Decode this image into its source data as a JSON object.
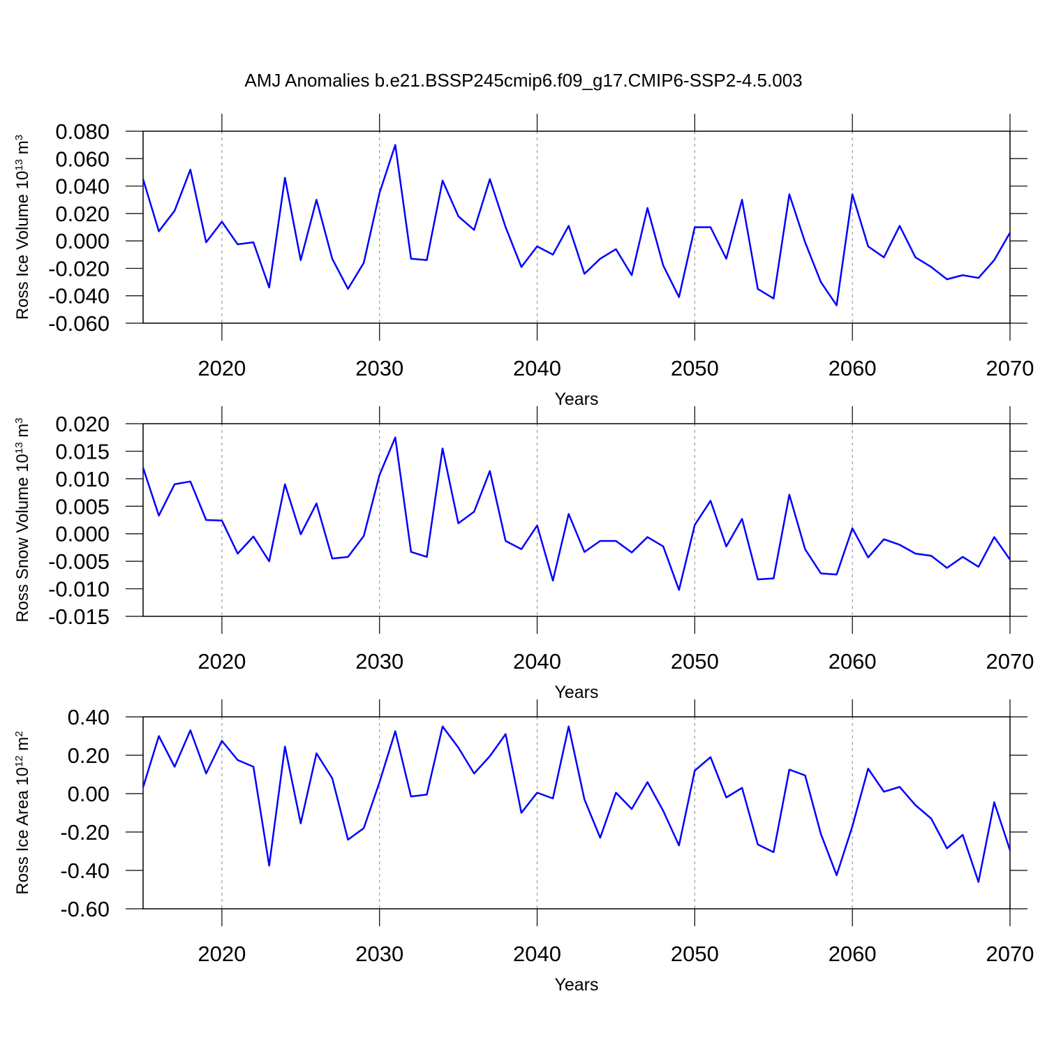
{
  "chart_data": [
    {
      "type": "line",
      "title": "AMJ Anomalies b.e21.BSSP245cmip6.f09_g17.CMIP6-SSP2-4.5.003",
      "ylabel": [
        "Ross Ice Volume 10",
        "13",
        " m",
        "3"
      ],
      "xlabel": "Years",
      "color": "#0000ff",
      "grid": "x",
      "xlim": [
        2015,
        2070
      ],
      "xticks": [
        2020,
        2030,
        2040,
        2050,
        2060,
        2070
      ],
      "ylim": [
        -0.06,
        0.08
      ],
      "yticks": [
        {
          "value": -0.06,
          "label": "-0.060"
        },
        {
          "value": -0.04,
          "label": "-0.040"
        },
        {
          "value": -0.02,
          "label": "-0.020"
        },
        {
          "value": 0,
          "label": "0.000"
        },
        {
          "value": 0.02,
          "label": "0.020"
        },
        {
          "value": 0.04,
          "label": "0.040"
        },
        {
          "value": 0.06,
          "label": "0.060"
        },
        {
          "value": 0.08,
          "label": "0.080"
        }
      ],
      "x": [
        2015,
        2016,
        2017,
        2018,
        2019,
        2020,
        2021,
        2022,
        2023,
        2024,
        2025,
        2026,
        2027,
        2028,
        2029,
        2030,
        2031,
        2032,
        2033,
        2034,
        2035,
        2036,
        2037,
        2038,
        2039,
        2040,
        2041,
        2042,
        2043,
        2044,
        2045,
        2046,
        2047,
        2048,
        2049,
        2050,
        2051,
        2052,
        2053,
        2054,
        2055,
        2056,
        2057,
        2058,
        2059,
        2060,
        2061,
        2062,
        2063,
        2064,
        2065,
        2066,
        2067,
        2068,
        2069,
        2070
      ],
      "values": [
        0.045,
        0.007,
        0.022,
        0.052,
        -0.001,
        0.014,
        -0.0025,
        -0.001,
        -0.034,
        0.046,
        -0.014,
        0.03,
        -0.013,
        -0.035,
        -0.016,
        0.035,
        0.07,
        -0.013,
        -0.014,
        0.044,
        0.018,
        0.008,
        0.045,
        0.01,
        -0.019,
        -0.004,
        -0.01,
        0.011,
        -0.024,
        -0.013,
        -0.006,
        -0.025,
        0.024,
        -0.018,
        -0.041,
        0.01,
        0.01,
        -0.013,
        0.03,
        -0.035,
        -0.042,
        0.034,
        -0.001,
        -0.03,
        -0.047,
        0.034,
        -0.004,
        -0.012,
        0.011,
        -0.012,
        -0.019,
        -0.028,
        -0.025,
        -0.027,
        -0.014,
        0.006
      ]
    },
    {
      "type": "line",
      "ylabel": [
        "Ross Snow Volume 10",
        "13",
        " m",
        "3"
      ],
      "xlabel": "Years",
      "color": "#0000ff",
      "grid": "x",
      "xlim": [
        2015,
        2070
      ],
      "xticks": [
        2020,
        2030,
        2040,
        2050,
        2060,
        2070
      ],
      "ylim": [
        -0.015,
        0.02
      ],
      "yticks": [
        {
          "value": -0.015,
          "label": "-0.015"
        },
        {
          "value": -0.01,
          "label": "-0.010"
        },
        {
          "value": -0.005,
          "label": "-0.005"
        },
        {
          "value": 0,
          "label": "0.000"
        },
        {
          "value": 0.005,
          "label": "0.005"
        },
        {
          "value": 0.01,
          "label": "0.010"
        },
        {
          "value": 0.015,
          "label": "0.015"
        },
        {
          "value": 0.02,
          "label": "0.020"
        }
      ],
      "x": [
        2015,
        2016,
        2017,
        2018,
        2019,
        2020,
        2021,
        2022,
        2023,
        2024,
        2025,
        2026,
        2027,
        2028,
        2029,
        2030,
        2031,
        2032,
        2033,
        2034,
        2035,
        2036,
        2037,
        2038,
        2039,
        2040,
        2041,
        2042,
        2043,
        2044,
        2045,
        2046,
        2047,
        2048,
        2049,
        2050,
        2051,
        2052,
        2053,
        2054,
        2055,
        2056,
        2057,
        2058,
        2059,
        2060,
        2061,
        2062,
        2063,
        2064,
        2065,
        2066,
        2067,
        2068,
        2069,
        2070
      ],
      "values": [
        0.012,
        0.0033,
        0.009,
        0.0095,
        0.0025,
        0.0024,
        -0.0036,
        -0.0005,
        -0.005,
        0.009,
        -0.0001,
        0.0055,
        -0.0045,
        -0.0042,
        -0.0004,
        0.0107,
        0.0175,
        -0.0033,
        -0.0042,
        0.0155,
        0.0019,
        0.004,
        0.0114,
        -0.0013,
        -0.0028,
        0.0015,
        -0.0085,
        0.0036,
        -0.0033,
        -0.0013,
        -0.0013,
        -0.0034,
        -0.0006,
        -0.0023,
        -0.0102,
        0.0016,
        0.006,
        -0.0023,
        0.0027,
        -0.0083,
        -0.0081,
        0.0071,
        -0.0028,
        -0.0072,
        -0.0074,
        0.001,
        -0.0043,
        -0.001,
        -0.002,
        -0.0036,
        -0.004,
        -0.0062,
        -0.0042,
        -0.006,
        -0.0006,
        -0.0047
      ]
    },
    {
      "type": "line",
      "ylabel": [
        "Ross Ice Area 10",
        "12",
        " m",
        "2"
      ],
      "xlabel": "Years",
      "color": "#0000ff",
      "grid": "x",
      "xlim": [
        2015,
        2070
      ],
      "xticks": [
        2020,
        2030,
        2040,
        2050,
        2060,
        2070
      ],
      "ylim": [
        -0.6,
        0.4
      ],
      "yticks": [
        {
          "value": -0.6,
          "label": "-0.60"
        },
        {
          "value": -0.4,
          "label": "-0.40"
        },
        {
          "value": -0.2,
          "label": "-0.20"
        },
        {
          "value": 0,
          "label": "0.00"
        },
        {
          "value": 0.2,
          "label": "0.20"
        },
        {
          "value": 0.4,
          "label": "0.40"
        }
      ],
      "x": [
        2015,
        2016,
        2017,
        2018,
        2019,
        2020,
        2021,
        2022,
        2023,
        2024,
        2025,
        2026,
        2027,
        2028,
        2029,
        2030,
        2031,
        2032,
        2033,
        2034,
        2035,
        2036,
        2037,
        2038,
        2039,
        2040,
        2041,
        2042,
        2043,
        2044,
        2045,
        2046,
        2047,
        2048,
        2049,
        2050,
        2051,
        2052,
        2053,
        2054,
        2055,
        2056,
        2057,
        2058,
        2059,
        2060,
        2061,
        2062,
        2063,
        2064,
        2065,
        2066,
        2067,
        2068,
        2069,
        2070
      ],
      "values": [
        0.033,
        0.3,
        0.14,
        0.33,
        0.105,
        0.275,
        0.175,
        0.14,
        -0.375,
        0.245,
        -0.155,
        0.21,
        0.08,
        -0.24,
        -0.18,
        0.06,
        0.325,
        -0.015,
        -0.005,
        0.35,
        0.24,
        0.105,
        0.195,
        0.31,
        -0.1,
        0.005,
        -0.025,
        0.35,
        -0.03,
        -0.23,
        0.005,
        -0.08,
        0.06,
        -0.09,
        -0.27,
        0.12,
        0.19,
        -0.02,
        0.03,
        -0.265,
        -0.305,
        0.125,
        0.095,
        -0.21,
        -0.425,
        -0.17,
        0.13,
        0.01,
        0.035,
        -0.06,
        -0.13,
        -0.285,
        -0.215,
        -0.46,
        -0.045,
        -0.295
      ]
    }
  ]
}
